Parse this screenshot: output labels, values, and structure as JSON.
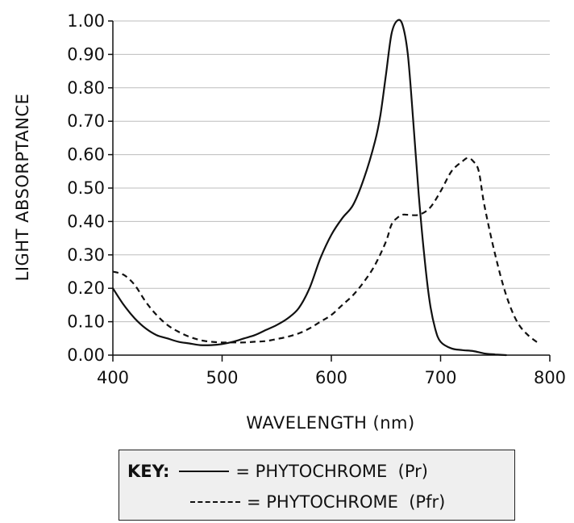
{
  "chart_data": {
    "type": "line",
    "xlabel": "WAVELENGTH (nm)",
    "ylabel": "LIGHT ABSORPTANCE",
    "xlim": [
      400,
      800
    ],
    "ylim": [
      0.0,
      1.0
    ],
    "xticks": [
      "400",
      "500",
      "600",
      "700",
      "800"
    ],
    "yticks": [
      "0.00",
      "0.10",
      "0.20",
      "0.30",
      "0.40",
      "0.50",
      "0.60",
      "0.70",
      "0.80",
      "0.90",
      "1.00"
    ],
    "grid": "horizontal",
    "series": [
      {
        "name": "PHYTOCHROME (Pr)",
        "style": "solid",
        "color": "#111111",
        "x": [
          400,
          410,
          420,
          430,
          440,
          450,
          460,
          470,
          480,
          490,
          500,
          510,
          520,
          530,
          540,
          550,
          560,
          570,
          580,
          590,
          600,
          610,
          620,
          630,
          640,
          645,
          650,
          655,
          660,
          665,
          670,
          675,
          680,
          685,
          690,
          695,
          700,
          710,
          720,
          730,
          740,
          750,
          760
        ],
        "y": [
          0.2,
          0.15,
          0.11,
          0.08,
          0.06,
          0.05,
          0.04,
          0.035,
          0.03,
          0.03,
          0.033,
          0.04,
          0.05,
          0.06,
          0.075,
          0.09,
          0.11,
          0.14,
          0.2,
          0.29,
          0.36,
          0.41,
          0.45,
          0.53,
          0.64,
          0.72,
          0.84,
          0.96,
          1.0,
          0.99,
          0.9,
          0.7,
          0.48,
          0.3,
          0.16,
          0.08,
          0.04,
          0.02,
          0.015,
          0.012,
          0.005,
          0.002,
          0.0
        ]
      },
      {
        "name": "PHYTOCHROME (Pfr)",
        "style": "dashed",
        "color": "#111111",
        "x": [
          400,
          410,
          420,
          430,
          440,
          450,
          460,
          470,
          480,
          490,
          500,
          510,
          520,
          530,
          540,
          550,
          560,
          570,
          580,
          590,
          600,
          610,
          620,
          630,
          640,
          650,
          655,
          660,
          665,
          670,
          680,
          690,
          700,
          710,
          720,
          725,
          730,
          735,
          740,
          750,
          760,
          770,
          780,
          790
        ],
        "y": [
          0.25,
          0.24,
          0.21,
          0.16,
          0.12,
          0.09,
          0.07,
          0.055,
          0.045,
          0.04,
          0.038,
          0.038,
          0.038,
          0.04,
          0.042,
          0.048,
          0.055,
          0.065,
          0.08,
          0.1,
          0.12,
          0.15,
          0.18,
          0.22,
          0.27,
          0.34,
          0.39,
          0.41,
          0.42,
          0.42,
          0.42,
          0.44,
          0.49,
          0.55,
          0.58,
          0.59,
          0.58,
          0.55,
          0.45,
          0.3,
          0.18,
          0.1,
          0.06,
          0.035
        ]
      }
    ]
  },
  "key": {
    "title": "KEY:",
    "pr_label": "= PHYTOCHROME  (Pr)",
    "pfr_label": "= PHYTOCHROME  (Pfr)"
  }
}
